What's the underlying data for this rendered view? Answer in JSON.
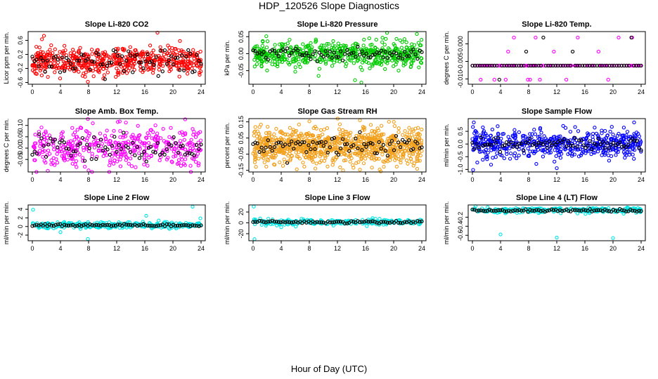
{
  "page": {
    "title": "HDP_120526  Slope Diagnostics",
    "xlabel": "Hour of Day (UTC)"
  },
  "chart_data": [
    {
      "type": "scatter",
      "title": "Slope Li-820 CO2",
      "ylabel": "Licor ppm per min.",
      "xlim": [
        -0.6,
        24.6
      ],
      "ylim": [
        -0.65,
        0.85
      ],
      "xticks": [
        0,
        4,
        8,
        12,
        16,
        20,
        24
      ],
      "yticks": [
        -0.6,
        -0.2,
        0.2,
        0.6
      ],
      "ytick_labels": [
        "-0.6",
        "-0.2",
        "0.2",
        "0.6"
      ],
      "point_color": "#ff0000",
      "summary_color": "#000000",
      "center": 0.02,
      "spread": 0.2,
      "count": 560,
      "hourly_count": 80,
      "hourly_spread": 0.2,
      "outliers": [
        [
          17.8,
          0.82
        ],
        [
          7.9,
          -0.58
        ]
      ],
      "seed": 11
    },
    {
      "type": "scatter",
      "title": "Slope Li-820 Pressure",
      "ylabel": "kPa per min.",
      "xlim": [
        -0.6,
        24.6
      ],
      "ylim": [
        -0.09,
        0.065
      ],
      "xticks": [
        0,
        4,
        8,
        12,
        16,
        20,
        24
      ],
      "yticks": [
        -0.05,
        0.0,
        0.05
      ],
      "ytick_labels": [
        "-0.05",
        "0.00",
        "0.05"
      ],
      "point_color": "#00cc00",
      "summary_color": "#000000",
      "center": 0.0,
      "spread": 0.018,
      "count": 560,
      "hourly_count": 80,
      "hourly_spread": 0.01,
      "outliers": [
        [
          23.3,
          0.058
        ],
        [
          14.5,
          -0.078
        ],
        [
          15.4,
          -0.085
        ]
      ],
      "seed": 23
    },
    {
      "type": "scatter",
      "title": "Slope Li-820 Temp.",
      "ylabel": "degrees C per min.",
      "xlim": [
        -0.6,
        24.6
      ],
      "ylim": [
        -0.0115,
        0.0035
      ],
      "xticks": [
        0,
        4,
        8,
        12,
        16,
        20,
        24
      ],
      "yticks": [
        -0.01,
        -0.005,
        0.0
      ],
      "ytick_labels": [
        "-0.010",
        "-0.005",
        "0.000"
      ],
      "point_color": "#ff00ff",
      "summary_color": "#000000",
      "discrete_levels": [
        -0.0062,
        -0.0022,
        0.0018,
        -0.0102
      ],
      "count": 140,
      "hourly_count": 70,
      "seed": 37
    },
    {
      "type": "scatter",
      "title": "Slope Amb. Box Temp.",
      "ylabel": "degrees C per min.",
      "xlim": [
        -0.6,
        24.6
      ],
      "ylim": [
        -0.105,
        0.13
      ],
      "xticks": [
        0,
        4,
        8,
        12,
        16,
        20,
        24
      ],
      "yticks": [
        -0.05,
        0.0,
        0.05,
        0.1
      ],
      "ytick_labels": [
        "-0.05",
        "0.00",
        "0.05",
        "0.10"
      ],
      "point_color": "#ff00ff",
      "summary_color": "#000000",
      "center": 0.0,
      "spread": 0.045,
      "count": 420,
      "hourly_count": 75,
      "hourly_spread": 0.03,
      "outliers": [
        [
          7.9,
          0.128
        ],
        [
          8.0,
          -0.098
        ],
        [
          2.2,
          -0.1
        ]
      ],
      "seed": 41
    },
    {
      "type": "scatter",
      "title": "Slope Gas Stream RH",
      "ylabel": "percent per min.",
      "xlim": [
        -0.6,
        24.6
      ],
      "ylim": [
        -0.16,
        0.17
      ],
      "xticks": [
        0,
        4,
        8,
        12,
        16,
        20,
        24
      ],
      "yticks": [
        -0.15,
        -0.05,
        0.05,
        0.15
      ],
      "ytick_labels": [
        "-0.15",
        "-0.05",
        "0.05",
        "0.15"
      ],
      "point_color": "#f2a01c",
      "summary_color": "#000000",
      "center": 0.0,
      "spread": 0.055,
      "count": 900,
      "hourly_count": 80,
      "hourly_spread": 0.03,
      "outliers": [
        [
          15.2,
          0.16
        ],
        [
          12.8,
          -0.15
        ]
      ],
      "seed": 53
    },
    {
      "type": "scatter",
      "title": "Slope Sample Flow",
      "ylabel": "ml/min per min.",
      "xlim": [
        -0.6,
        24.6
      ],
      "ylim": [
        -1.1,
        1.0
      ],
      "xticks": [
        0,
        4,
        8,
        12,
        16,
        20,
        24
      ],
      "yticks": [
        -1.0,
        -0.5,
        0.0,
        0.5
      ],
      "ytick_labels": [
        "-1.0",
        "-0.5",
        "0.0",
        "0.5"
      ],
      "point_color": "#0000ff",
      "summary_color": "#000000",
      "center": 0.0,
      "spread": 0.25,
      "count": 520,
      "hourly_count": 80,
      "hourly_spread": 0.12,
      "outliers": [
        [
          0.1,
          -1.02
        ],
        [
          0.2,
          0.85
        ],
        [
          23.0,
          0.85
        ],
        [
          12.0,
          -0.95
        ]
      ],
      "seed": 67
    },
    {
      "type": "scatter",
      "title": "Slope Line 2 Flow",
      "ylabel": "ml/min per min.",
      "xlim": [
        -0.6,
        24.6
      ],
      "ylim": [
        -3.3,
        5.0
      ],
      "xticks": [
        0,
        4,
        8,
        12,
        16,
        20,
        24
      ],
      "yticks": [
        -2,
        0,
        2,
        4
      ],
      "ytick_labels": [
        "-2",
        "0",
        "2",
        "4"
      ],
      "point_color": "#00e5e5",
      "summary_color": "#000000",
      "center": 0.3,
      "spread": 0.35,
      "count": 300,
      "hourly_count": 80,
      "hourly_spread": 0.15,
      "outliers": [
        [
          0.1,
          3.9
        ],
        [
          22.8,
          4.6
        ],
        [
          7.9,
          -2.9
        ],
        [
          16.2,
          2.5
        ],
        [
          23.9,
          1.9
        ],
        [
          4.0,
          -1.3
        ]
      ],
      "seed": 79
    },
    {
      "type": "scatter",
      "title": "Slope Line 3 Flow",
      "ylabel": "ml/min per min.",
      "xlim": [
        -0.6,
        24.6
      ],
      "ylim": [
        -33.0,
        33.0
      ],
      "xticks": [
        0,
        4,
        8,
        12,
        16,
        20,
        24
      ],
      "yticks": [
        -20,
        0,
        20
      ],
      "ytick_labels": [
        "-20",
        "0",
        "20"
      ],
      "point_color": "#00e5e5",
      "summary_color": "#000000",
      "center": 1.5,
      "spread": 2.5,
      "count": 260,
      "hourly_count": 80,
      "hourly_spread": 1.2,
      "outliers": [
        [
          0.1,
          30.0
        ],
        [
          0.2,
          -30.0
        ],
        [
          4.0,
          -8.0
        ],
        [
          1.0,
          8.0
        ]
      ],
      "seed": 83
    },
    {
      "type": "scatter",
      "title": "Slope Line 4 (LT) Flow",
      "ylabel": "ml/min per min.",
      "xlim": [
        -0.6,
        24.6
      ],
      "ylim": [
        -0.72,
        0.07
      ],
      "xticks": [
        0,
        4,
        8,
        12,
        16,
        20,
        24
      ],
      "yticks": [
        -0.6,
        -0.4,
        -0.2
      ],
      "ytick_labels": [
        "-0.6",
        "-0.4",
        "-0.2"
      ],
      "point_color": "#00e5e5",
      "summary_color": "#000000",
      "center": -0.05,
      "spread": 0.03,
      "count": 300,
      "hourly_count": 80,
      "hourly_spread": 0.015,
      "outliers": [
        [
          4.0,
          -0.58
        ],
        [
          12.0,
          -0.65
        ],
        [
          20.0,
          -0.66
        ]
      ],
      "seed": 97
    }
  ]
}
